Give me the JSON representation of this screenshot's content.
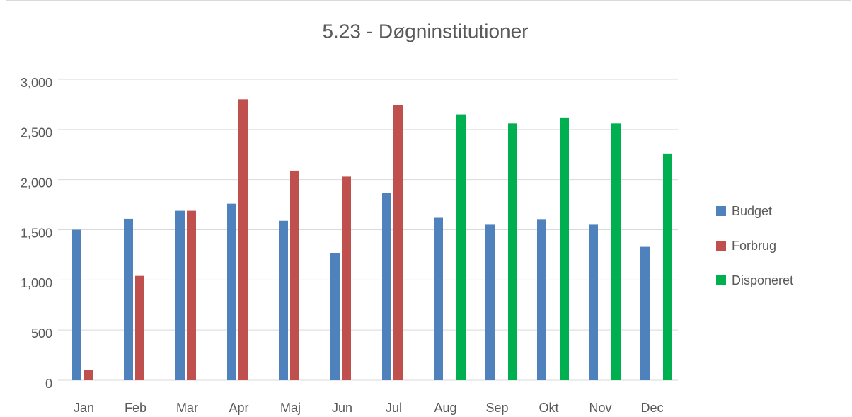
{
  "chart_data": {
    "type": "bar",
    "title": "5.23 - Døgninstitutioner",
    "categories": [
      "Jan",
      "Feb",
      "Mar",
      "Apr",
      "Maj",
      "Jun",
      "Jul",
      "Aug",
      "Sep",
      "Okt",
      "Nov",
      "Dec"
    ],
    "series": [
      {
        "name": "Budget",
        "color": "#4f81bd",
        "values": [
          1500,
          1610,
          1690,
          1760,
          1590,
          1270,
          1870,
          1620,
          1550,
          1600,
          1550,
          1330
        ]
      },
      {
        "name": "Forbrug",
        "color": "#c0504d",
        "values": [
          100,
          1040,
          1690,
          2800,
          2090,
          2030,
          2740,
          null,
          null,
          null,
          null,
          null
        ]
      },
      {
        "name": "Disponeret",
        "color": "#00b050",
        "values": [
          null,
          null,
          null,
          null,
          null,
          null,
          null,
          2650,
          2560,
          2620,
          2560,
          2260
        ]
      }
    ],
    "ylim": [
      0,
      3000
    ],
    "yticks": [
      0,
      500,
      {
        "value": 1000,
        "label": "1,000"
      },
      {
        "value": 1500,
        "label": "1,500"
      },
      {
        "value": 2000,
        "label": "2,000"
      },
      {
        "value": 2500,
        "label": "2,500"
      },
      {
        "value": 3000,
        "label": "3,000"
      }
    ],
    "grid": true,
    "legend": "right"
  }
}
